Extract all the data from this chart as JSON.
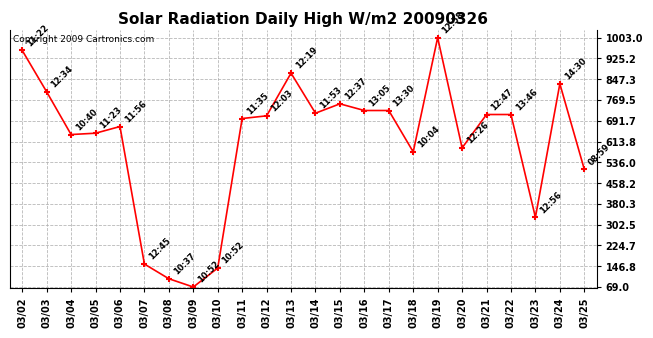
{
  "title": "Solar Radiation Daily High W/m2 20090326",
  "copyright": "Copyright 2009 Cartronics.com",
  "dates": [
    "03/02",
    "03/03",
    "03/04",
    "03/05",
    "03/06",
    "03/07",
    "03/08",
    "03/09",
    "03/10",
    "03/11",
    "03/12",
    "03/13",
    "03/14",
    "03/15",
    "03/16",
    "03/17",
    "03/18",
    "03/19",
    "03/20",
    "03/21",
    "03/22",
    "03/23",
    "03/24",
    "03/25"
  ],
  "values": [
    955,
    800,
    640,
    645,
    670,
    155,
    100,
    69,
    140,
    700,
    710,
    870,
    720,
    755,
    730,
    730,
    575,
    1003,
    590,
    715,
    715,
    330,
    830,
    510
  ],
  "times": [
    "11:22",
    "12:34",
    "10:40",
    "11:23",
    "11:56",
    "12:45",
    "10:37",
    "10:52",
    "10:52",
    "11:35",
    "12:03",
    "12:19",
    "11:53",
    "12:37",
    "13:05",
    "13:30",
    "10:04",
    "12:58",
    "12:26",
    "12:47",
    "13:46",
    "12:56",
    "14:30",
    "08:59"
  ],
  "line_color": "#ff0000",
  "marker_color": "#ff0000",
  "bg_color": "#ffffff",
  "plot_bg_color": "#ffffff",
  "grid_color": "#b0b0b0",
  "title_fontsize": 11,
  "tick_fontsize": 7,
  "annotation_fontsize": 6,
  "ymin": 69.0,
  "ymax": 1003.0,
  "yticks": [
    69.0,
    146.8,
    224.7,
    302.5,
    380.3,
    458.2,
    536.0,
    613.8,
    691.7,
    769.5,
    847.3,
    925.2,
    1003.0
  ]
}
